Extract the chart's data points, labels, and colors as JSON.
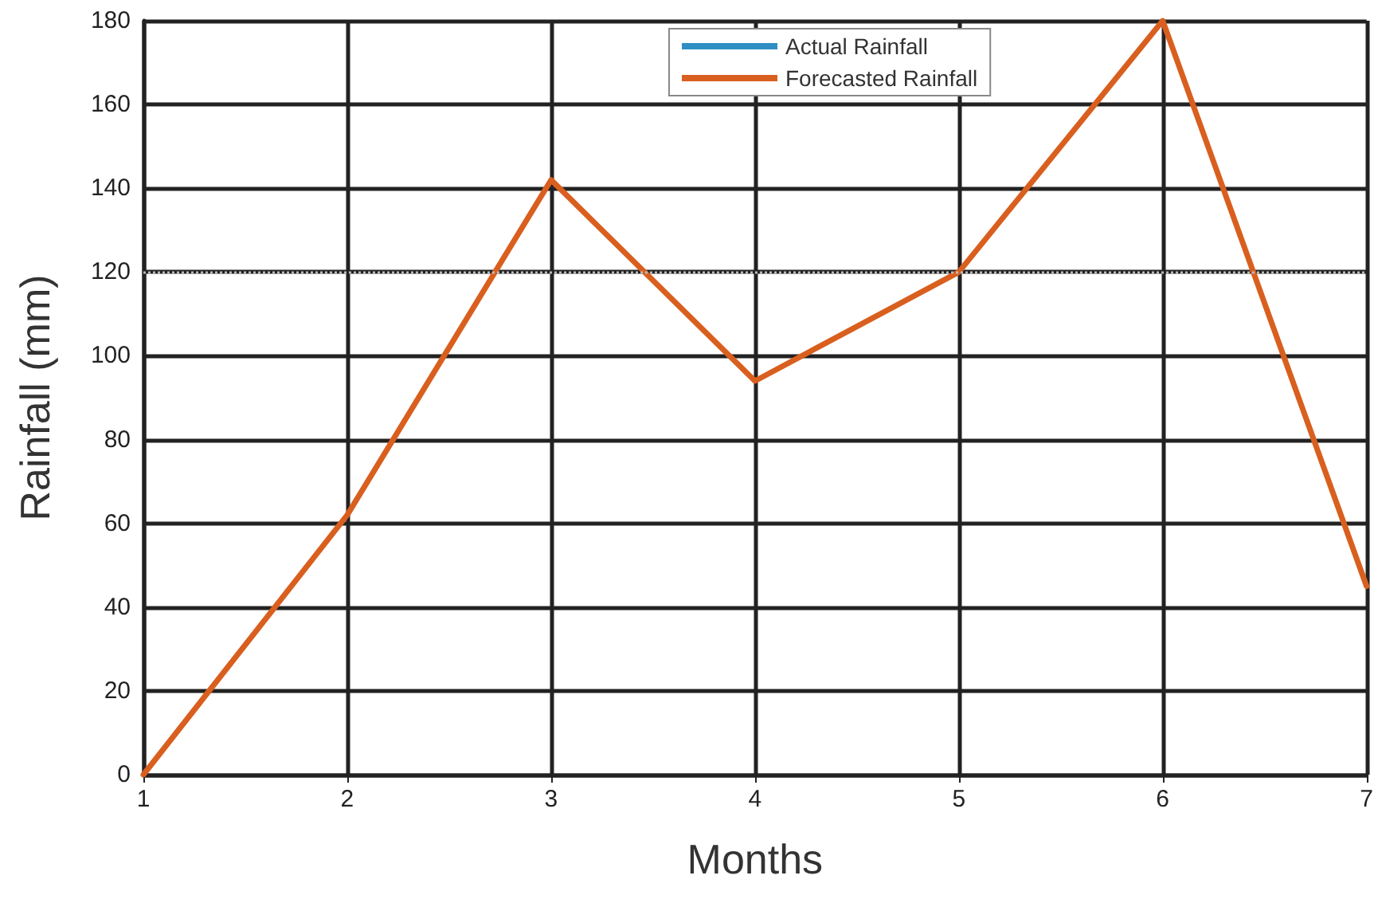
{
  "chart_data": {
    "type": "line",
    "xlabel": "Months",
    "ylabel": "Rainfall (mm)",
    "x": [
      1,
      2,
      3,
      4,
      5,
      6,
      7
    ],
    "series": [
      {
        "name": "Actual Rainfall",
        "color": "#2f8fc4",
        "values": [
          null,
          null,
          null,
          null,
          null,
          null,
          null
        ]
      },
      {
        "name": "Forecasted Rainfall",
        "color": "#d95f1f",
        "values": [
          0,
          62,
          142,
          94,
          120,
          180,
          45
        ]
      }
    ],
    "xlim": [
      1,
      7
    ],
    "xticks": [
      1,
      2,
      3,
      4,
      5,
      6,
      7
    ],
    "ylim": [
      0,
      180
    ],
    "yticks": [
      0,
      20,
      40,
      60,
      80,
      100,
      120,
      140,
      160,
      180
    ],
    "ref_lines": [
      {
        "axis": "y",
        "value": 120,
        "color": "#bbbbbb",
        "line_style": "dotted"
      }
    ],
    "grid": true,
    "legend": "top",
    "marker": "none",
    "line_style": "solid"
  }
}
